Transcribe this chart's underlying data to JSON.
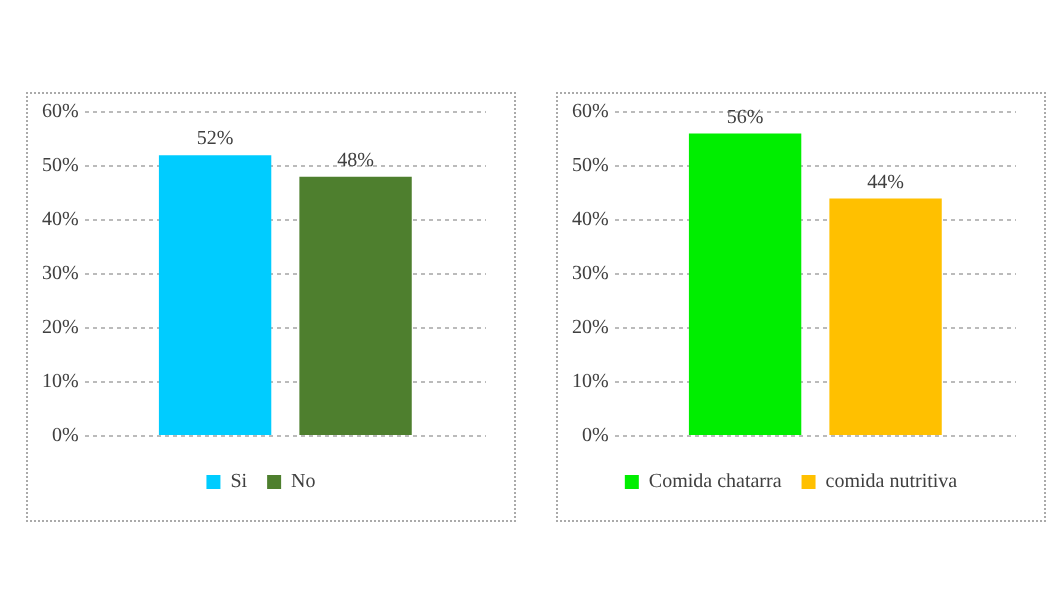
{
  "chart_data": [
    {
      "type": "bar",
      "categories": [
        null
      ],
      "series": [
        {
          "name": "Si",
          "color": "#00ccff",
          "values": [
            52
          ],
          "value_labels": [
            "52%"
          ]
        },
        {
          "name": "No",
          "color": "#4e7f2e",
          "values": [
            48
          ],
          "value_labels": [
            "48%"
          ]
        }
      ],
      "ylim": [
        0,
        60
      ],
      "yticks": [
        {
          "value": 0,
          "label": "0%"
        },
        {
          "value": 10,
          "label": "10%"
        },
        {
          "value": 20,
          "label": "20%"
        },
        {
          "value": 30,
          "label": "30%"
        },
        {
          "value": 40,
          "label": "40%"
        },
        {
          "value": 50,
          "label": "50%"
        },
        {
          "value": 60,
          "label": "60%"
        }
      ],
      "grid": "y",
      "legend": "bottom"
    },
    {
      "type": "bar",
      "categories": [
        null
      ],
      "series": [
        {
          "name": "Comida chatarra",
          "color": "#00ee00",
          "values": [
            56
          ],
          "value_labels": [
            "56%"
          ]
        },
        {
          "name": "comida nutritiva",
          "color": "#ffc000",
          "values": [
            44
          ],
          "value_labels": [
            "44%"
          ]
        }
      ],
      "ylim": [
        0,
        60
      ],
      "yticks": [
        {
          "value": 0,
          "label": "0%"
        },
        {
          "value": 10,
          "label": "10%"
        },
        {
          "value": 20,
          "label": "20%"
        },
        {
          "value": 30,
          "label": "30%"
        },
        {
          "value": 40,
          "label": "40%"
        },
        {
          "value": 50,
          "label": "50%"
        },
        {
          "value": 60,
          "label": "60%"
        }
      ],
      "grid": "y",
      "legend": "bottom"
    }
  ]
}
